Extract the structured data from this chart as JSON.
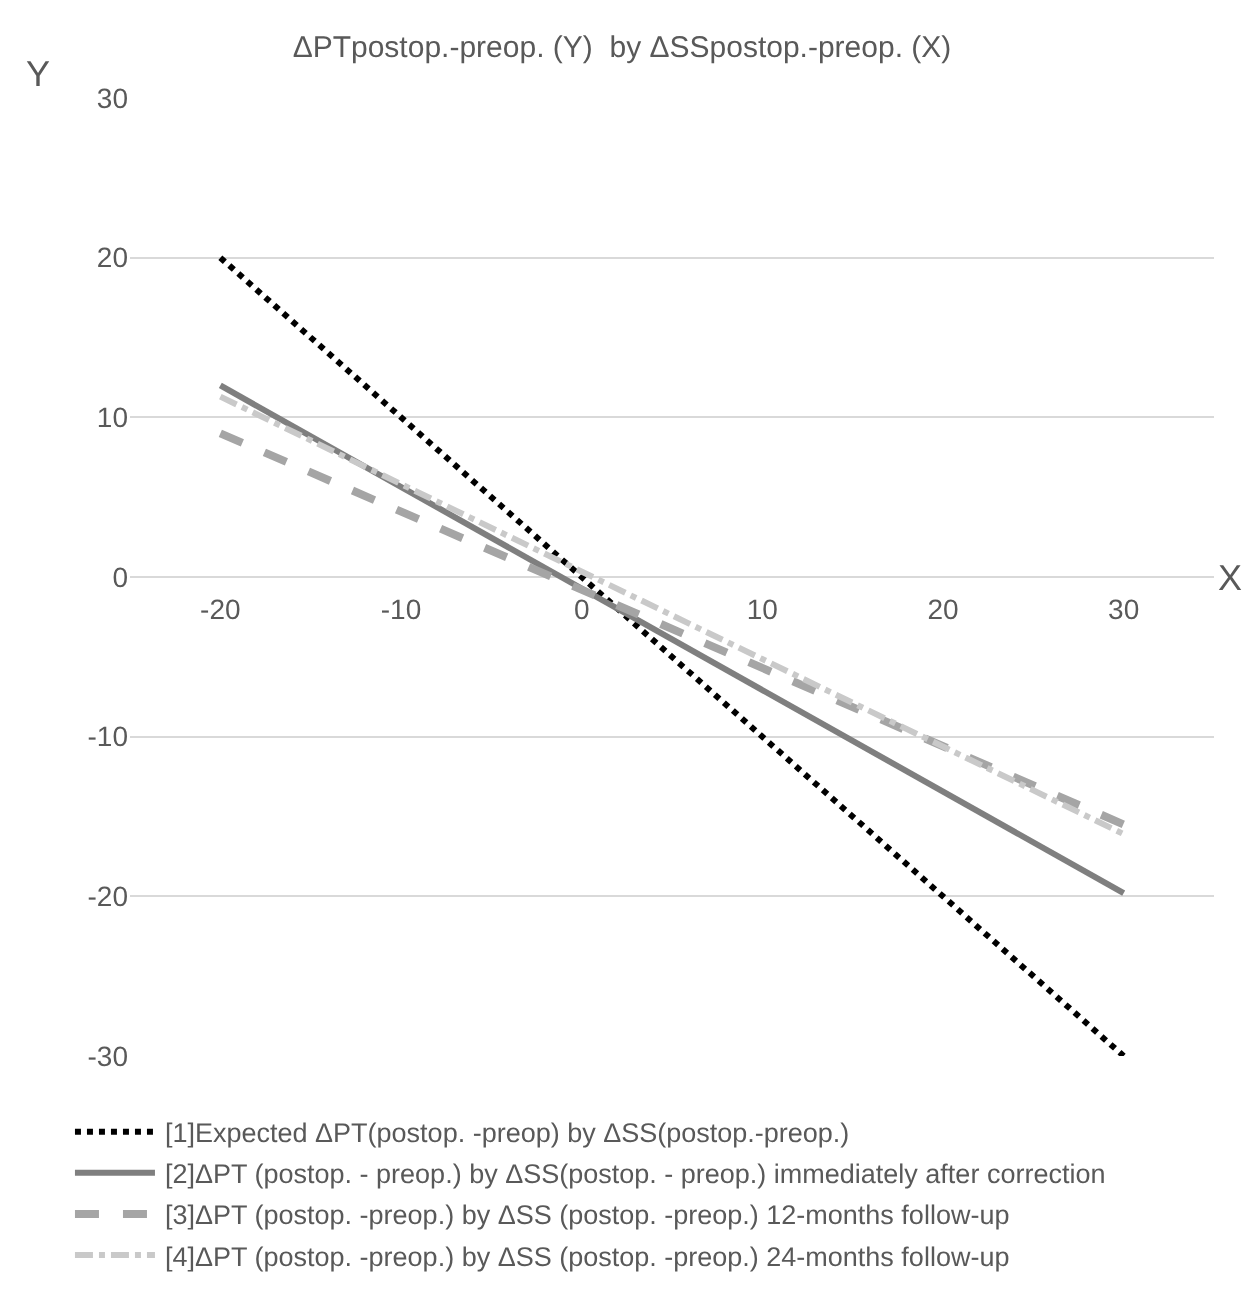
{
  "chart_data": {
    "type": "line",
    "title": "ΔPTpostop.-preop. (Y)  by ΔSSpostop.-preop. (X)",
    "xlabel": "X",
    "ylabel": "Y",
    "xlim": [
      -25,
      35
    ],
    "xticks": [
      -20,
      -10,
      0,
      10,
      20,
      30
    ],
    "ylim": [
      -30,
      30
    ],
    "yticks": [
      -30,
      -20,
      -10,
      0,
      10,
      20,
      30
    ],
    "grid": "y",
    "legend": "bottom",
    "marker": "none",
    "x": [
      -20,
      30
    ],
    "series": [
      {
        "name": "[1]Expected ΔPT(postop. -preop) by ΔSS(postop.-preop.)",
        "color": "#000000",
        "line_style": "dotted",
        "values": [
          20,
          -30
        ]
      },
      {
        "name": "[2]ΔPT (postop. - preop.) by ΔSS(postop. - preop.) immediately after correction",
        "color": "#7f7f7f",
        "line_style": "solid",
        "values": [
          12,
          -19.8
        ]
      },
      {
        "name": "[3]ΔPT (postop. -preop.) by ΔSS (postop. -preop.) 12-months follow-up",
        "color": "#a5a5a5",
        "line_style": "dashed",
        "values": [
          9,
          -15.5
        ]
      },
      {
        "name": "[4]ΔPT (postop. -preop.) by ΔSS (postop. -preop.) 24-months follow-up",
        "color": "#c9c9c9",
        "line_style": "dashdot",
        "values": [
          11.3,
          -16.1
        ]
      }
    ]
  }
}
